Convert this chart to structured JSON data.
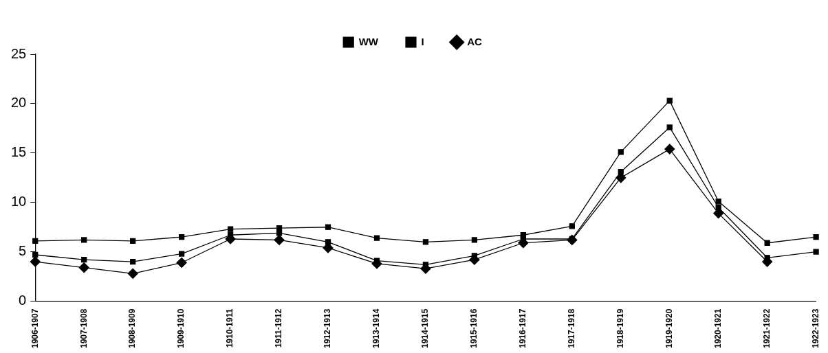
{
  "chart_data": {
    "type": "line",
    "categories": [
      "1906-1907",
      "1907-1908",
      "1908-1909",
      "1909-1910",
      "1910-1911",
      "1911-1912",
      "1912-1913",
      "1913-1914",
      "1914-1915",
      "1915-1916",
      "1916-1917",
      "1917-1918",
      "1918-1919",
      "1919-1920",
      "1920-1921",
      "1921-1922",
      "1922-1923"
    ],
    "series": [
      {
        "name": "WW",
        "color": "#000000",
        "marker": "square",
        "values": [
          6.1,
          6.2,
          6.1,
          6.5,
          7.3,
          7.4,
          7.5,
          6.4,
          6.0,
          6.2,
          6.7,
          7.6,
          15.1,
          20.3,
          10.1,
          5.9,
          6.5
        ]
      },
      {
        "name": "I",
        "color": "#000000",
        "marker": "square",
        "values": [
          4.7,
          4.2,
          4.0,
          4.8,
          6.7,
          6.9,
          6.0,
          4.1,
          3.7,
          4.6,
          6.3,
          6.3,
          13.1,
          17.6,
          9.5,
          4.4,
          5.0
        ]
      },
      {
        "name": "AC",
        "color": "#000000",
        "marker": "diamond",
        "values": [
          4.0,
          3.4,
          2.8,
          3.9,
          6.3,
          6.2,
          5.4,
          3.8,
          3.3,
          4.2,
          5.9,
          6.2,
          12.5,
          15.4,
          8.9,
          4.0,
          null
        ]
      }
    ],
    "ylim": [
      0,
      25
    ],
    "yticks": [
      0,
      5,
      10,
      15,
      20,
      25
    ],
    "grid": false,
    "legend": "top",
    "line_style": "solid"
  }
}
